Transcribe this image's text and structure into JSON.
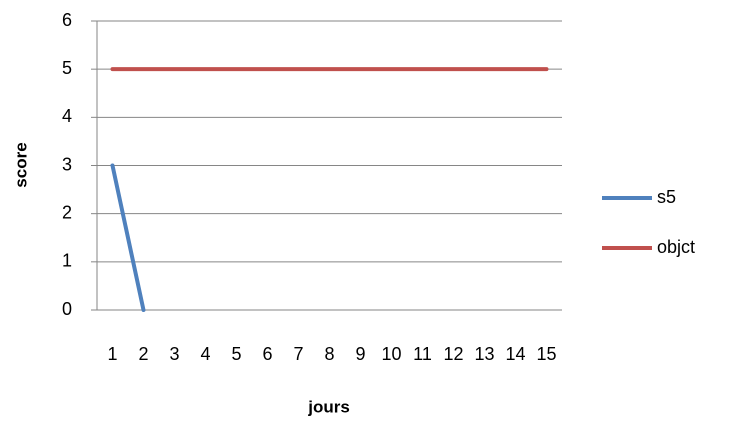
{
  "chart_data": {
    "type": "line",
    "categories": [
      "1",
      "2",
      "3",
      "4",
      "5",
      "6",
      "7",
      "8",
      "9",
      "10",
      "11",
      "12",
      "13",
      "14",
      "15"
    ],
    "series": [
      {
        "name": "s5",
        "color": "#4f81bd",
        "values": [
          3,
          0,
          null,
          null,
          null,
          null,
          null,
          null,
          null,
          null,
          null,
          null,
          null,
          null,
          null
        ]
      },
      {
        "name": "objct",
        "color": "#c0504d",
        "values": [
          5,
          5,
          5,
          5,
          5,
          5,
          5,
          5,
          5,
          5,
          5,
          5,
          5,
          5,
          5
        ]
      }
    ],
    "x_label": "jours",
    "y_label": "score",
    "ylim": [
      0,
      6
    ],
    "yticks": [
      0,
      1,
      2,
      3,
      4,
      5,
      6
    ],
    "grid": true,
    "legend": "right"
  }
}
